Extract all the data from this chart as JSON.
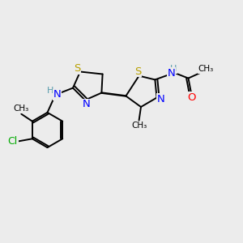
{
  "background_color": "#ececec",
  "atom_colors": {
    "S": "#b8a000",
    "N": "#0000ff",
    "O": "#ff0000",
    "Cl": "#00aa00",
    "C": "#000000",
    "H": "#5599aa"
  },
  "figsize": [
    3.0,
    3.0
  ],
  "dpi": 100,
  "xlim": [
    0,
    10
  ],
  "ylim": [
    0,
    10
  ]
}
